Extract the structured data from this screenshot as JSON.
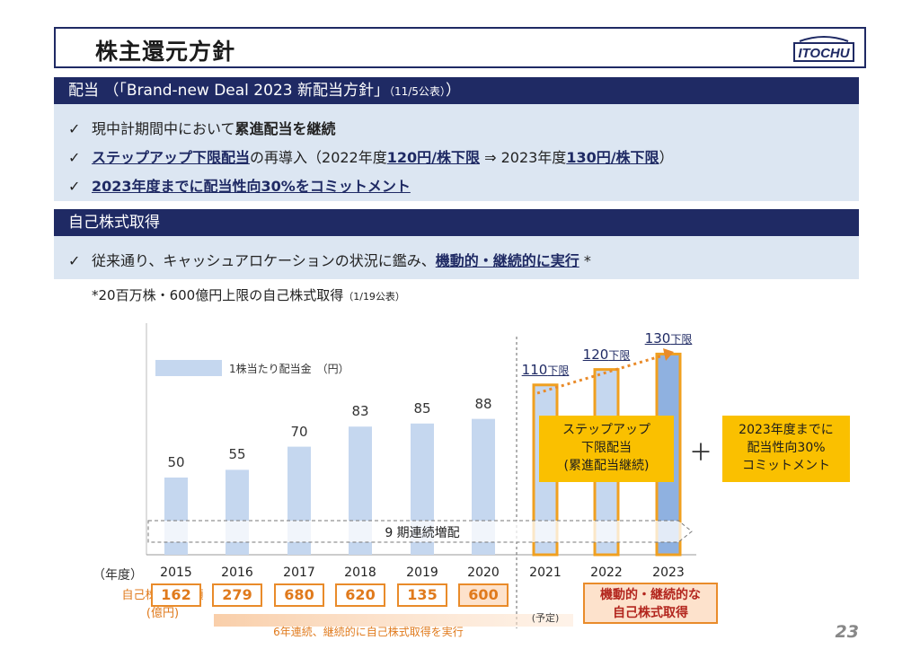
{
  "header": {
    "title": "株主還元方針",
    "logo_text": "ITOCHU"
  },
  "dividend_section": {
    "title": "配当 （「Brand-new Deal 2023 新配当方針」",
    "title_small": "（11/5公表）",
    "title_end": "）",
    "bullets": [
      {
        "check": "✓",
        "pre": "現中計期間中において",
        "bold": "累進配当を継続",
        "post": ""
      },
      {
        "check": "✓",
        "bold_ul": "ステップアップ下限配当",
        "mid": "の再導入（2022年度",
        "v1": "120円/株下限",
        "arrow": " ⇒ 2023年度",
        "v2": "130円/株下限",
        "end": "）"
      },
      {
        "check": "✓",
        "bold_ul": "2023年度までに配当性向30%をコミットメント"
      }
    ]
  },
  "buyback_section": {
    "title": "自己株式取得",
    "bullet_check": "✓",
    "bullet_pre": "従来通り、キャッシュアロケーションの状況に鑑み、",
    "bullet_ul": "機動的・継続的に実行",
    "bullet_star": " *",
    "note": "*20百万株・600億円上限の自己株式取得",
    "note_small": "（1/19公表）"
  },
  "chart_data": {
    "type": "bar",
    "legend": "1株当たり配当金　（円）",
    "year_axis_label": "（年度）",
    "categories": [
      "2015",
      "2016",
      "2017",
      "2018",
      "2019",
      "2020",
      "2021",
      "2022",
      "2023"
    ],
    "values": [
      50,
      55,
      70,
      83,
      85,
      88,
      110,
      120,
      130
    ],
    "value_labels": [
      "50",
      "55",
      "70",
      "83",
      "85",
      "88",
      "110",
      "120",
      "130"
    ],
    "label_suffix": [
      "",
      "",
      "",
      "",
      "",
      "",
      "下限",
      "下限",
      "下限"
    ],
    "ylim": [
      0,
      130
    ],
    "banner_9": "9 期連続増配",
    "callout_step": [
      "ステップアップ",
      "下限配当",
      "(累進配当継続)"
    ],
    "plus": "＋",
    "callout_commit": [
      "2023年度までに",
      "配当性向30%",
      "コミットメント"
    ],
    "buyback_label": [
      "自己株式取得額",
      "(億円)"
    ],
    "buyback_values": [
      "162",
      "279",
      "680",
      "620",
      "135",
      "600"
    ],
    "buyback_note_2021": "(予定)",
    "buyback_future": [
      "機動的・継続的な",
      "自己株式取得"
    ],
    "buyback_banner": "6年連続、継続的に自己株式取得を実行",
    "colors": {
      "bar": "#c5d7ef",
      "bar_2023": "#8fb1e0",
      "outline": "#f0a020",
      "navy": "#1f2a64",
      "orange": "#e07a1c"
    }
  },
  "page_number": "23"
}
